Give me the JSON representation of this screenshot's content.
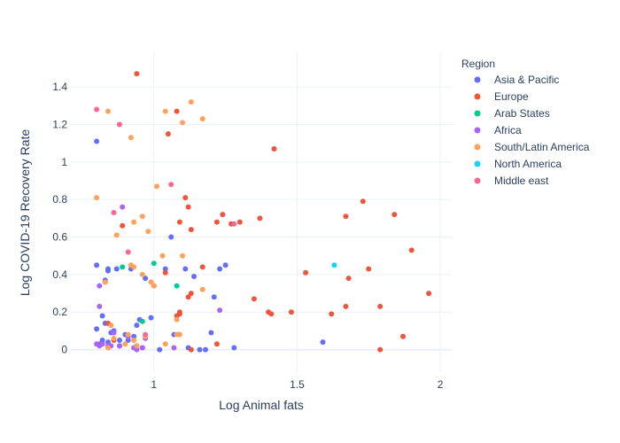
{
  "chart_data": {
    "type": "scatter",
    "xlabel": "Log Animal fats",
    "ylabel": "Log COVID-19 Recovery Rate",
    "xlim": [
      0.71,
      2.04
    ],
    "ylim": [
      -0.12,
      1.58
    ],
    "xticks": [
      1,
      1.5,
      2
    ],
    "xtick_labels": [
      "1",
      "1.5",
      "2"
    ],
    "yticks": [
      0,
      0.2,
      0.4,
      0.6,
      0.8,
      1,
      1.2,
      1.4
    ],
    "ytick_labels": [
      "0",
      "0.2",
      "0.4",
      "0.6",
      "0.8",
      "1",
      "1.2",
      "1.4"
    ],
    "grid": true,
    "legend_title": "Region",
    "legend_position": "right",
    "series": [
      {
        "name": "Asia & Pacific",
        "color": "#636efa",
        "x": [
          0.8,
          0.8,
          0.84,
          0.84,
          0.87,
          0.92,
          0.97,
          1.04,
          1.06,
          1.11,
          1.14,
          1.21,
          1.23,
          1.25,
          0.83,
          0.85,
          0.82,
          0.83,
          0.86,
          0.8,
          0.88,
          0.9,
          0.93,
          0.94,
          0.95,
          0.99,
          1.02,
          1.07,
          1.12,
          1.16,
          1.18,
          1.2,
          1.28,
          1.59,
          0.81,
          0.82,
          0.84,
          0.88,
          0.91
        ],
        "y": [
          1.11,
          0.45,
          0.43,
          0.42,
          0.43,
          0.43,
          0.38,
          0.43,
          0.6,
          0.43,
          0.39,
          0.28,
          0.43,
          0.45,
          0.37,
          0.09,
          0.18,
          0.14,
          0.1,
          0.11,
          0.05,
          0.08,
          0.07,
          0.13,
          0.16,
          0.17,
          0.0,
          0.08,
          0.01,
          0.0,
          0.0,
          0.09,
          0.01,
          0.04,
          0.03,
          0.05,
          0.04,
          0.02,
          0.05
        ]
      },
      {
        "name": "Europe",
        "color": "#ef553b",
        "x": [
          0.94,
          1.05,
          1.08,
          1.11,
          1.12,
          1.09,
          1.13,
          1.22,
          1.24,
          1.27,
          1.3,
          1.37,
          1.42,
          1.67,
          1.73,
          1.84,
          1.9,
          1.96,
          1.75,
          1.68,
          1.53,
          1.48,
          1.4,
          1.41,
          1.35,
          1.62,
          1.67,
          1.79,
          1.87,
          1.79,
          0.89,
          1.0,
          1.04,
          1.09,
          1.12,
          1.13,
          1.17,
          1.22,
          1.13,
          1.09,
          1.08,
          0.84,
          0.86
        ],
        "y": [
          1.47,
          1.15,
          1.27,
          0.81,
          0.76,
          0.68,
          0.64,
          0.68,
          0.72,
          0.67,
          0.68,
          0.7,
          1.07,
          0.71,
          0.79,
          0.72,
          0.53,
          0.3,
          0.43,
          0.38,
          0.41,
          0.2,
          0.2,
          0.19,
          0.27,
          0.19,
          0.23,
          0.23,
          0.07,
          0.0,
          0.66,
          0.34,
          0.41,
          0.2,
          0.28,
          0.3,
          0.44,
          0.03,
          0.0,
          0.19,
          0.18,
          0.14,
          0.05
        ]
      },
      {
        "name": "Arab States",
        "color": "#00cc96",
        "x": [
          1.0,
          0.89,
          1.08,
          0.96,
          0.94
        ],
        "y": [
          0.46,
          0.44,
          0.34,
          0.15,
          0.02
        ]
      },
      {
        "name": "Africa",
        "color": "#ab63fa",
        "x": [
          0.89,
          0.81,
          0.81,
          0.83,
          0.84,
          0.85,
          0.86,
          0.91,
          0.93,
          0.96,
          0.97,
          1.07,
          1.23,
          0.8,
          0.81,
          0.82,
          0.88,
          0.94,
          0.96
        ],
        "y": [
          0.76,
          0.34,
          0.23,
          0.36,
          0.02,
          0.02,
          0.09,
          0.07,
          0.01,
          0.01,
          0.06,
          0.01,
          0.21,
          0.03,
          0.02,
          0.03,
          0.02,
          0.0,
          0.01
        ]
      },
      {
        "name": "South/Latin America",
        "color": "#ffa15a",
        "x": [
          0.84,
          0.8,
          0.92,
          0.96,
          0.93,
          0.98,
          1.01,
          1.03,
          1.04,
          1.1,
          1.13,
          1.17,
          1.1,
          1.04,
          0.93,
          0.92,
          0.96,
          0.99,
          1.0,
          1.08,
          1.09,
          1.08,
          1.17,
          0.87,
          0.83,
          0.85,
          0.91,
          0.93,
          0.97,
          0.84,
          0.86,
          0.9,
          0.94
        ],
        "y": [
          1.27,
          0.81,
          1.13,
          0.71,
          0.68,
          0.63,
          0.87,
          0.5,
          1.27,
          1.21,
          1.32,
          1.23,
          0.5,
          0.03,
          0.44,
          0.45,
          0.4,
          0.36,
          0.34,
          0.16,
          0.08,
          0.08,
          0.32,
          0.61,
          0.36,
          0.13,
          0.08,
          0.05,
          0.07,
          0.01,
          0.06,
          0.03,
          0.02
        ]
      },
      {
        "name": "North America",
        "color": "#19d3f3",
        "x": [
          1.63
        ],
        "y": [
          0.45
        ]
      },
      {
        "name": "Middle east",
        "color": "#ff6692",
        "x": [
          0.8,
          0.88,
          0.86,
          0.91,
          1.06,
          1.28,
          0.97
        ],
        "y": [
          1.28,
          1.2,
          0.73,
          0.52,
          0.88,
          0.67,
          0.08
        ]
      }
    ]
  }
}
